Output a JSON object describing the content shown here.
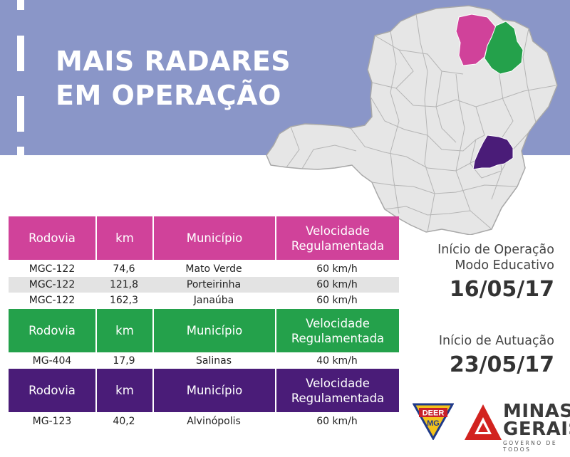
{
  "headline": {
    "line1": "MAIS RADARES",
    "line2": "EM OPERAÇÃO"
  },
  "colors": {
    "banner": "#8a96c8",
    "pink": "#d0429a",
    "green": "#24a14b",
    "purple": "#4a1c78",
    "grey_row": "#e3e3e3",
    "map": "#e6e6e6"
  },
  "tables": [
    {
      "color": "pink",
      "headers": [
        "Rodovia",
        "km",
        "Município",
        "Velocidade Regulamentada"
      ],
      "rows": [
        {
          "rodovia": "MGC-122",
          "km": "74,6",
          "municipio": "Mato Verde",
          "velocidade": "60 km/h"
        },
        {
          "rodovia": "MGC-122",
          "km": "121,8",
          "municipio": "Porteirinha",
          "velocidade": "60 km/h"
        },
        {
          "rodovia": "MGC-122",
          "km": "162,3",
          "municipio": "Janaúba",
          "velocidade": "60 km/h"
        }
      ]
    },
    {
      "color": "green",
      "headers": [
        "Rodovia",
        "km",
        "Município",
        "Velocidade Regulamentada"
      ],
      "rows": [
        {
          "rodovia": "MG-404",
          "km": "17,9",
          "municipio": "Salinas",
          "velocidade": "40 km/h"
        }
      ]
    },
    {
      "color": "purple",
      "headers": [
        "Rodovia",
        "km",
        "Município",
        "Velocidade Regulamentada"
      ],
      "rows": [
        {
          "rodovia": "MG-123",
          "km": "40,2",
          "municipio": "Alvinópolis",
          "velocidade": "60 km/h"
        }
      ]
    }
  ],
  "info": {
    "operacao_line1": "Início de Operação",
    "operacao_line2": "Modo Educativo",
    "operacao_date": "16/05/17",
    "autuacao_label": "Início de Autuação",
    "autuacao_date": "23/05/17"
  },
  "logos": {
    "deer_top": "DEER",
    "deer_bottom": "MG",
    "minas_line1": "MINAS",
    "minas_line2": "GERAIS",
    "minas_sub": "GOVERNO DE TODOS"
  }
}
